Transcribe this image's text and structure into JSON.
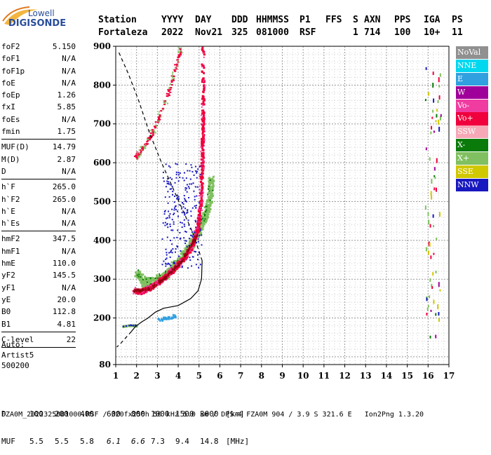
{
  "logo": {
    "top": "Lowell",
    "bottom": "DIGISONDE"
  },
  "header": {
    "labels": [
      "Station",
      "YYYY",
      "DAY",
      "DDD",
      "HHMMSS",
      "P1",
      "FFS",
      "S",
      "AXN",
      "PPS",
      "IGA",
      "PS"
    ],
    "values": [
      "Fortaleza",
      "2022",
      "Nov21",
      "325",
      "081000",
      "RSF",
      "",
      "1",
      "714",
      "100",
      "10+",
      "11"
    ]
  },
  "params": [
    {
      "name": "foF2",
      "value": "5.150"
    },
    {
      "name": "foF1",
      "value": "N/A"
    },
    {
      "name": "foF1p",
      "value": "N/A"
    },
    {
      "name": "foE",
      "value": "N/A"
    },
    {
      "name": "foEp",
      "value": "1.26"
    },
    {
      "name": "fxI",
      "value": "5.85"
    },
    {
      "name": "foEs",
      "value": "N/A"
    },
    {
      "name": "fmin",
      "value": "1.75"
    },
    {
      "sep": true
    },
    {
      "name": "MUF(D)",
      "value": "14.79"
    },
    {
      "name": "M(D)",
      "value": "2.87"
    },
    {
      "name": "D",
      "value": "N/A"
    },
    {
      "sep": true
    },
    {
      "name": "h`F",
      "value": "265.0"
    },
    {
      "name": "h`F2",
      "value": "265.0"
    },
    {
      "name": "h`E",
      "value": "N/A"
    },
    {
      "name": "h`Es",
      "value": "N/A"
    },
    {
      "sep": true
    },
    {
      "name": "hmF2",
      "value": "347.5"
    },
    {
      "name": "hmF1",
      "value": "N/A"
    },
    {
      "name": "hmE",
      "value": "110.0"
    },
    {
      "name": "yF2",
      "value": "145.5"
    },
    {
      "name": "yF1",
      "value": "N/A"
    },
    {
      "name": "yE",
      "value": "20.0"
    },
    {
      "name": "B0",
      "value": "112.8"
    },
    {
      "name": "B1",
      "value": "4.81"
    },
    {
      "sep": true
    },
    {
      "name": "C-level",
      "value": "22"
    },
    {
      "sep": true
    }
  ],
  "auto": {
    "line1": "Auto:",
    "line2": "Artist5",
    "line3": "500200"
  },
  "legend": [
    {
      "label": "NoVal",
      "color": "#909090"
    },
    {
      "label": "NNE",
      "color": "#00d8f0"
    },
    {
      "label": "E",
      "color": "#30a0e0"
    },
    {
      "label": "W",
      "color": "#a0009a"
    },
    {
      "label": "Vo-",
      "color": "#f03ca0"
    },
    {
      "label": "Vo+",
      "color": "#f0003c"
    },
    {
      "label": "SSW",
      "color": "#f7a8b6"
    },
    {
      "label": "X-",
      "color": "#0a7a0a"
    },
    {
      "label": "X+",
      "color": "#80c060"
    },
    {
      "label": "SSE",
      "color": "#d0c800"
    },
    {
      "label": "NNW",
      "color": "#1818c0"
    }
  ],
  "chart_data": {
    "type": "scatter",
    "xlim": [
      1,
      17
    ],
    "ylim": [
      80,
      900
    ],
    "xticks": [
      "1",
      "2",
      "3",
      "4",
      "5",
      "6",
      "7",
      "8",
      "9",
      "10",
      "11",
      "12",
      "13",
      "14",
      "15",
      "16",
      "17"
    ],
    "yticks": [
      "80",
      "200",
      "300",
      "400",
      "500",
      "600",
      "700",
      "800",
      "900"
    ],
    "grid": true,
    "traces": {
      "vo_plus_ordinary_trace": [
        [
          1.85,
          272
        ],
        [
          2.2,
          270
        ],
        [
          2.6,
          280
        ],
        [
          3.0,
          295
        ],
        [
          3.4,
          310
        ],
        [
          3.8,
          330
        ],
        [
          4.2,
          355
        ],
        [
          4.6,
          385
        ],
        [
          4.9,
          430
        ],
        [
          5.05,
          500
        ],
        [
          5.12,
          600
        ],
        [
          5.15,
          700
        ],
        [
          5.15,
          900
        ]
      ],
      "x_plus_extraordinary_trace": [
        [
          1.95,
          320
        ],
        [
          2.3,
          295
        ],
        [
          2.7,
          295
        ],
        [
          3.1,
          305
        ],
        [
          3.5,
          320
        ],
        [
          3.9,
          345
        ],
        [
          4.3,
          370
        ],
        [
          4.7,
          400
        ],
        [
          5.05,
          440
        ],
        [
          5.3,
          470
        ],
        [
          5.5,
          510
        ],
        [
          5.55,
          560
        ]
      ],
      "ordinary_second_hop": [
        [
          1.9,
          615
        ],
        [
          2.2,
          635
        ],
        [
          2.5,
          660
        ],
        [
          2.8,
          685
        ],
        [
          3.2,
          735
        ],
        [
          3.6,
          800
        ],
        [
          3.9,
          860
        ],
        [
          4.1,
          900
        ]
      ],
      "e_region_echoes": [
        [
          1.3,
          180
        ],
        [
          1.5,
          182
        ],
        [
          1.8,
          183
        ],
        [
          2.0,
          182
        ]
      ],
      "e_region_echoes_2": [
        [
          3.0,
          198
        ],
        [
          3.3,
          200
        ],
        [
          3.6,
          204
        ],
        [
          3.85,
          208
        ]
      ],
      "oblique_scatter_16MHz": [
        [
          15.9,
          170
        ],
        [
          16.0,
          300
        ],
        [
          16.1,
          470
        ],
        [
          16.0,
          650
        ],
        [
          16.2,
          780
        ],
        [
          16.3,
          880
        ]
      ]
    },
    "profile_line": [
      [
        5.15,
        347.5
      ],
      [
        5.12,
        300
      ],
      [
        4.95,
        270
      ],
      [
        4.6,
        250
      ],
      [
        4.0,
        232
      ],
      [
        3.3,
        225
      ],
      [
        2.9,
        215
      ],
      [
        2.55,
        200
      ],
      [
        2.25,
        190
      ],
      [
        1.95,
        178
      ],
      [
        1.75,
        165
      ]
    ],
    "profile_dashed_lower": [
      [
        1.75,
        165
      ],
      [
        1.5,
        150
      ],
      [
        1.25,
        135
      ],
      [
        1.05,
        125
      ]
    ],
    "profile_dashed_upper": [
      [
        5.15,
        347.5
      ],
      [
        4.7,
        420
      ],
      [
        4.2,
        480
      ],
      [
        3.7,
        540
      ],
      [
        3.2,
        600
      ],
      [
        2.6,
        680
      ],
      [
        2.1,
        760
      ],
      [
        1.6,
        830
      ],
      [
        1.1,
        890
      ]
    ]
  },
  "bottom": {
    "d_row": [
      "D",
      "100",
      "200",
      "400",
      "600",
      "800",
      "1000",
      "1500",
      "3000",
      "[km]"
    ],
    "muf_row": [
      "MUF",
      "5.5",
      "5.5",
      "5.8",
      "6.1",
      "6.6",
      "7.3",
      "9.4",
      "14.8",
      "[MHz]"
    ]
  },
  "footer": "FZA0M_2022325081000.RSF / 320fx256h 50 kHz 5.0 km / DPS-4 FZA0M 904 / 3.9 S 321.6 E   Ion2Png 1.3.20"
}
